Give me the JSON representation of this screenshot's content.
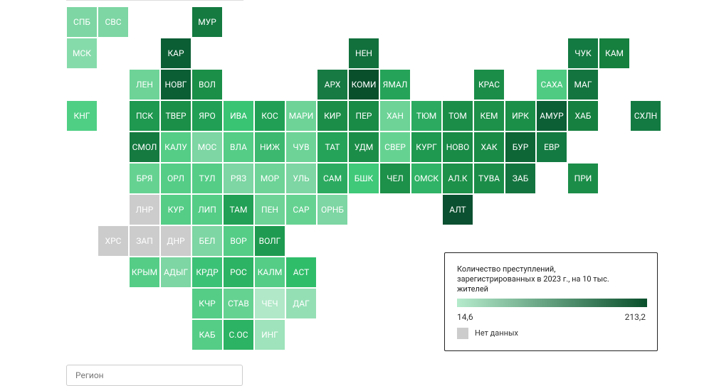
{
  "tiles": [
    {
      "label": "СПБ",
      "color": "#7dd6a3"
    },
    {
      "label": "СВС",
      "color": "#7dd6a3"
    },
    {
      "label": "МУР",
      "color": "#147a40"
    },
    {
      "label": "МСК",
      "color": "#86dbab"
    },
    {
      "label": "КАР",
      "color": "#0b5e34"
    },
    {
      "label": "НЕН",
      "color": "#11703c"
    },
    {
      "label": "ЧУК",
      "color": "#137a41"
    },
    {
      "label": "КАМ",
      "color": "#16803f"
    },
    {
      "label": "ЛЕН",
      "color": "#6dd397"
    },
    {
      "label": "НОВГ",
      "color": "#0b5e34"
    },
    {
      "label": "ВОЛ",
      "color": "#1b8f48"
    },
    {
      "label": "АРХ",
      "color": "#167a42"
    },
    {
      "label": "КОМИ",
      "color": "#0a4f2c"
    },
    {
      "label": "ЯМАЛ",
      "color": "#25a358"
    },
    {
      "label": "КРАС",
      "color": "#1c8d49"
    },
    {
      "label": "САХА",
      "color": "#4fcb82"
    },
    {
      "label": "МАГ",
      "color": "#14743f"
    },
    {
      "label": "КНГ",
      "color": "#4fcf84"
    },
    {
      "label": "ПСК",
      "color": "#1f9850"
    },
    {
      "label": "ТВЕР",
      "color": "#1b8f48"
    },
    {
      "label": "ЯРО",
      "color": "#21a055"
    },
    {
      "label": "ИВА",
      "color": "#39c474"
    },
    {
      "label": "КОС",
      "color": "#21a055"
    },
    {
      "label": "МАРИ",
      "color": "#6dd397"
    },
    {
      "label": "КИР",
      "color": "#1c8d49"
    },
    {
      "label": "ПЕР",
      "color": "#1a8a47"
    },
    {
      "label": "ХАН",
      "color": "#6dd397"
    },
    {
      "label": "ТЮМ",
      "color": "#2cab60"
    },
    {
      "label": "ТОМ",
      "color": "#1c8d49"
    },
    {
      "label": "КЕМ",
      "color": "#1d9049"
    },
    {
      "label": "ИРК",
      "color": "#1b8f48"
    },
    {
      "label": "АМУР",
      "color": "#0c5e35"
    },
    {
      "label": "ХАБ",
      "color": "#168040"
    },
    {
      "label": "СХЛН",
      "color": "#137a41"
    },
    {
      "label": "СМОЛ",
      "color": "#147a40"
    },
    {
      "label": "КАЛУ",
      "color": "#55cd87"
    },
    {
      "label": "МОС",
      "color": "#7dd6a3"
    },
    {
      "label": "ВЛА",
      "color": "#55cd87"
    },
    {
      "label": "НИЖ",
      "color": "#3cb86f"
    },
    {
      "label": "ЧУВ",
      "color": "#6dd397"
    },
    {
      "label": "ТАТ",
      "color": "#25a358"
    },
    {
      "label": "УДМ",
      "color": "#1c8d49"
    },
    {
      "label": "СВЕР",
      "color": "#66d292"
    },
    {
      "label": "КУРГ",
      "color": "#1f9850"
    },
    {
      "label": "НОВО",
      "color": "#1a8a47"
    },
    {
      "label": "ХАК",
      "color": "#1a8a47"
    },
    {
      "label": "БУР",
      "color": "#0e6536"
    },
    {
      "label": "ЕВР",
      "color": "#137a41"
    },
    {
      "label": "БРЯ",
      "color": "#66d292"
    },
    {
      "label": "ОРЛ",
      "color": "#55cd87"
    },
    {
      "label": "ТУЛ",
      "color": "#55cd87"
    },
    {
      "label": "РЯЗ",
      "color": "#7dd6a3"
    },
    {
      "label": "МОР",
      "color": "#6dd397"
    },
    {
      "label": "УЛЬ",
      "color": "#7dd6a3"
    },
    {
      "label": "САМ",
      "color": "#2cab60"
    },
    {
      "label": "БШК",
      "color": "#3fc979"
    },
    {
      "label": "ЧЕЛ",
      "color": "#1d9049"
    },
    {
      "label": "ОМСК",
      "color": "#30b366"
    },
    {
      "label": "АЛ.К",
      "color": "#1d9049"
    },
    {
      "label": "ТУВА",
      "color": "#1c8d49"
    },
    {
      "label": "ЗАБ",
      "color": "#14743f"
    },
    {
      "label": "ПРИ",
      "color": "#1c8d49"
    },
    {
      "label": "ЛНР",
      "color": "#cccccc"
    },
    {
      "label": "КУР",
      "color": "#55cd87"
    },
    {
      "label": "ЛИП",
      "color": "#55cd87"
    },
    {
      "label": "ТАМ",
      "color": "#22a055"
    },
    {
      "label": "ПЕН",
      "color": "#6dd397"
    },
    {
      "label": "САР",
      "color": "#66d292"
    },
    {
      "label": "ОРНБ",
      "color": "#7dd6a3"
    },
    {
      "label": "АЛТ",
      "color": "#0b5030"
    },
    {
      "label": "ХРС",
      "color": "#cccccc"
    },
    {
      "label": "ЗАП",
      "color": "#cccccc"
    },
    {
      "label": "ДНР",
      "color": "#cccccc"
    },
    {
      "label": "БЕЛ",
      "color": "#7dd6a3"
    },
    {
      "label": "ВОР",
      "color": "#55cd87"
    },
    {
      "label": "ВОЛГ",
      "color": "#1e9b50"
    },
    {
      "label": "КРЫМ",
      "color": "#55cd87"
    },
    {
      "label": "АДЫГ",
      "color": "#7dd6a3"
    },
    {
      "label": "КРДР",
      "color": "#3cc277"
    },
    {
      "label": "РОС",
      "color": "#2cb363"
    },
    {
      "label": "КАЛМ",
      "color": "#55cd87"
    },
    {
      "label": "АСТ",
      "color": "#30bd6a"
    },
    {
      "label": "КЧР",
      "color": "#55cd87"
    },
    {
      "label": "СТАВ",
      "color": "#66d292"
    },
    {
      "label": "ЧЕЧ",
      "color": "#b0e8c8"
    },
    {
      "label": "ДАГ",
      "color": "#95dfb5"
    },
    {
      "label": "КАБ",
      "color": "#55cd87"
    },
    {
      "label": "С.ОС",
      "color": "#2cb363"
    },
    {
      "label": "ИНГ",
      "color": "#9ee3bb"
    }
  ],
  "legend": {
    "title": "Количество преступлений, зарегистрированных в 2023 г., на 10 тыс. жителей",
    "min_label": "14,6",
    "max_label": "213,2",
    "min_color": "#b5ebcc",
    "max_color": "#0a4f2c",
    "no_data": "Нет данных",
    "no_data_color": "#cccccc"
  },
  "dropdown": {
    "placeholder": "Регион"
  }
}
